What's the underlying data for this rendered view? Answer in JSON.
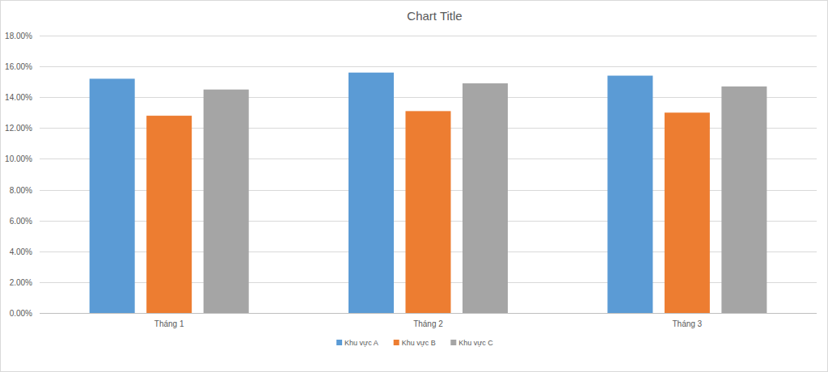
{
  "chart_data": {
    "type": "bar",
    "title": "Chart Title",
    "categories": [
      "Tháng 1",
      "Tháng 2",
      "Tháng 3"
    ],
    "series": [
      {
        "name": "Khu vực A",
        "color": "#5b9bd5",
        "values": [
          15.2,
          15.6,
          15.4
        ]
      },
      {
        "name": "Khu vực B",
        "color": "#ed7d31",
        "values": [
          12.8,
          13.1,
          13.0
        ]
      },
      {
        "name": "Khu vực C",
        "color": "#a5a5a5",
        "values": [
          14.5,
          14.9,
          14.7
        ]
      }
    ],
    "ylim": [
      0,
      18
    ],
    "yticks": [
      {
        "value": 0,
        "label": "0.00%"
      },
      {
        "value": 2,
        "label": "2.00%"
      },
      {
        "value": 4,
        "label": "4.00%"
      },
      {
        "value": 6,
        "label": "6.00%"
      },
      {
        "value": 8,
        "label": "8.00%"
      },
      {
        "value": 10,
        "label": "10.00%"
      },
      {
        "value": 12,
        "label": "12.00%"
      },
      {
        "value": 14,
        "label": "14.00%"
      },
      {
        "value": 16,
        "label": "16.00%"
      },
      {
        "value": 18,
        "label": "18.00%"
      }
    ],
    "grid": true,
    "legend": "bottom"
  }
}
